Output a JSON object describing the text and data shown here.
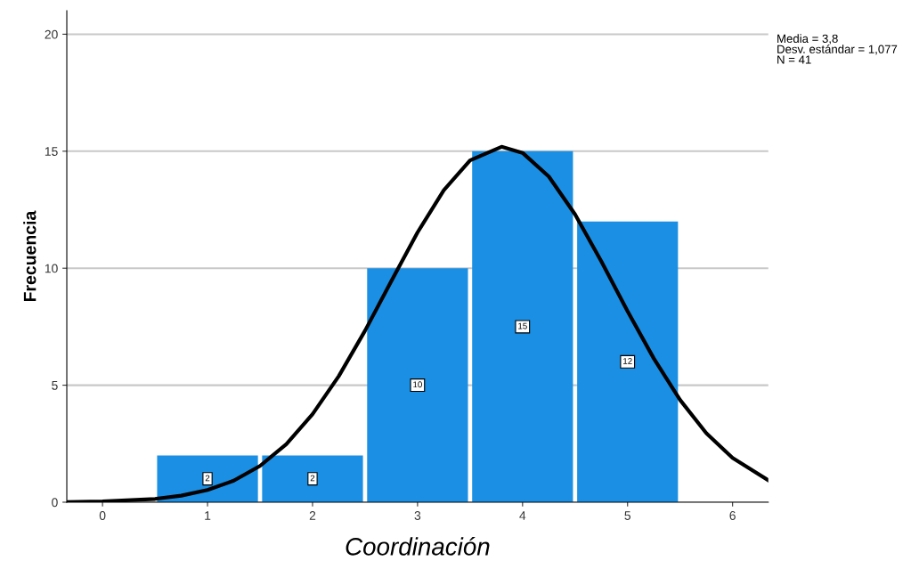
{
  "chart_data": {
    "type": "histogram",
    "xlabel": "Coordinación",
    "ylabel": "Frecuencia",
    "annotations": [
      "Media = 3,8\nDesv. estándar = 1,077\nN = 41"
    ],
    "bins": [
      0.5,
      1.5,
      2.5,
      3.5,
      4.5,
      5.5
    ],
    "series": [
      {
        "color": "#1a8fe3",
        "values": [
          2,
          2,
          10,
          15,
          12
        ],
        "value_labels": [
          "2",
          "2",
          "10",
          "15",
          "12"
        ]
      },
      {
        "type": "line",
        "color": "#000000",
        "x": [
          -0.34,
          0,
          0.5,
          0.75,
          1,
          1.25,
          1.5,
          1.75,
          2,
          2.25,
          2.5,
          2.75,
          3,
          3.25,
          3.5,
          3.8,
          4,
          4.25,
          4.5,
          4.75,
          5,
          5.25,
          5.5,
          5.75,
          6,
          6.34
        ],
        "values": [
          0.01,
          0.03,
          0.14,
          0.28,
          0.52,
          0.92,
          1.55,
          2.48,
          3.76,
          5.39,
          7.33,
          9.45,
          11.53,
          13.33,
          14.61,
          15.19,
          14.93,
          13.92,
          12.3,
          10.29,
          8.16,
          6.14,
          4.37,
          2.95,
          1.89,
          0.94
        ]
      }
    ],
    "xlim": [
      -0.34,
      6.34
    ],
    "ylim": [
      0,
      21
    ],
    "xticks": [
      0,
      1,
      2,
      3,
      4,
      5,
      6
    ],
    "yticks": [
      0,
      5,
      10,
      15,
      20
    ],
    "grid": "y",
    "marker": "none",
    "line_style": "solid"
  }
}
